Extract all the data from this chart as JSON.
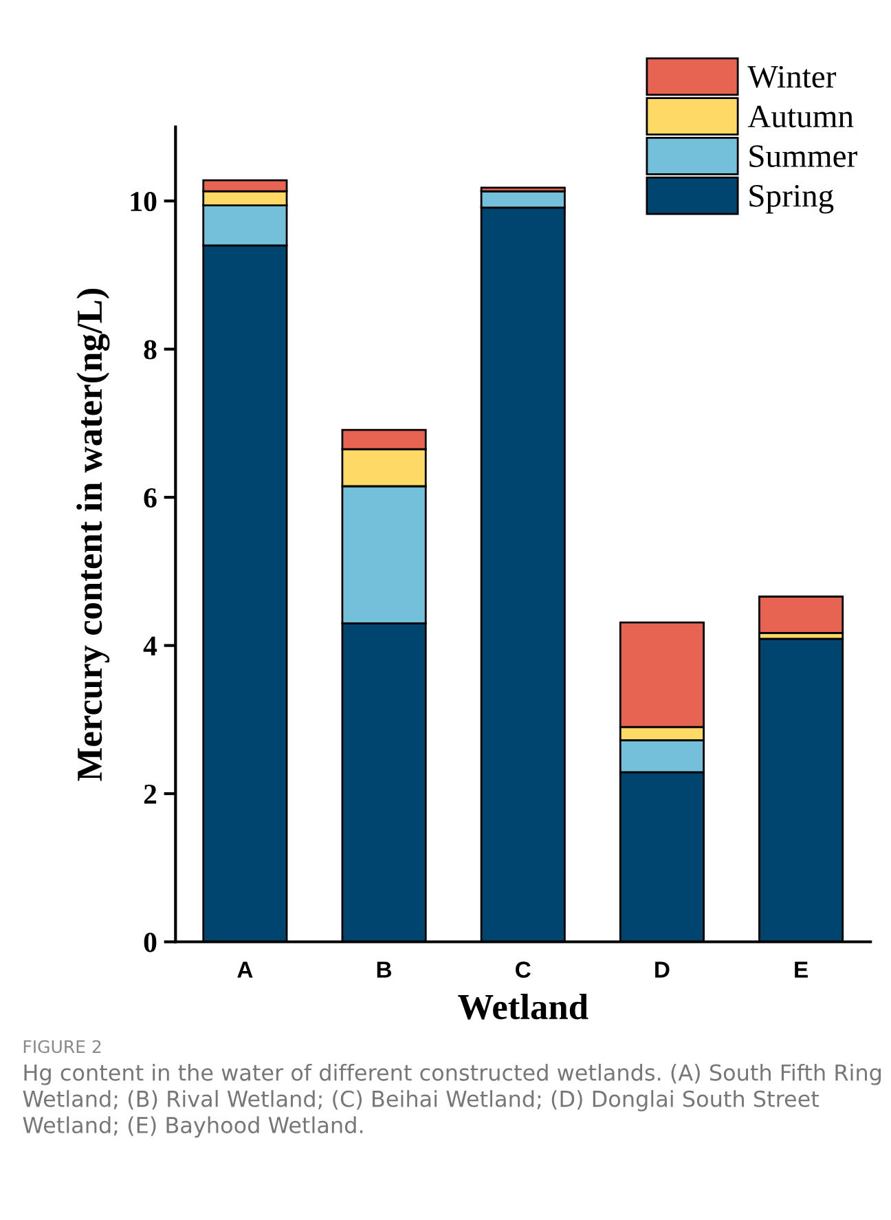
{
  "chart_data": {
    "type": "bar",
    "stacked": true,
    "xlabel": "Wetland",
    "ylabel": "Mercury content in water(ng/L)",
    "categories": [
      "A",
      "B",
      "C",
      "D",
      "E"
    ],
    "series": [
      {
        "name": "Spring",
        "color": "#004570",
        "values": [
          9.4,
          4.3,
          9.91,
          2.29,
          4.09
        ]
      },
      {
        "name": "Summer",
        "color": "#74bfda",
        "values": [
          0.54,
          1.85,
          0.22,
          0.43,
          null
        ]
      },
      {
        "name": "Autumn",
        "color": "#ffd966",
        "values": [
          0.19,
          0.5,
          null,
          0.18,
          0.08
        ]
      },
      {
        "name": "Winter",
        "color": "#e86452",
        "values": [
          0.15,
          0.26,
          0.05,
          1.41,
          0.49
        ]
      }
    ],
    "ylim": [
      0,
      11
    ],
    "yticks": [
      0,
      2,
      4,
      6,
      8,
      10
    ],
    "grid": false,
    "legend": "top right",
    "annotations": [
      "FIGURE 2",
      "Hg content in the water of different constructed wetlands. (A) South Fifth Ring Wetland; (B) Rival Wetland; (C) Beihai Wetland; (D) Donglai South Street Wetland; (E) Bayhood Wetland."
    ]
  }
}
